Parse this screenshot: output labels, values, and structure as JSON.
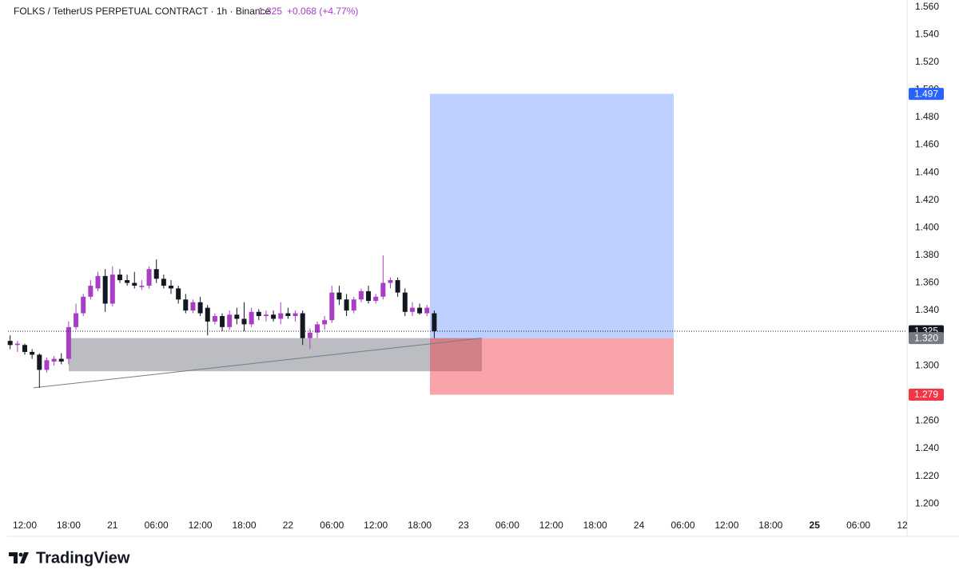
{
  "header": {
    "symbol": "FOLKS / TetherUS PERPETUAL CONTRACT · 1h · Binance",
    "last": 1.325,
    "change": "+0.068 (+4.77%)"
  },
  "chart_data": {
    "type": "candlestick",
    "open": [
      1.318,
      1.315,
      1.315,
      1.31,
      1.308,
      1.297,
      1.303,
      1.305,
      1.305,
      1.328,
      1.338,
      1.35,
      1.356,
      1.365,
      1.345,
      1.366,
      1.362,
      1.36,
      1.357,
      1.358,
      1.37,
      1.363,
      1.358,
      1.356,
      1.348,
      1.34,
      1.346,
      1.342,
      1.332,
      1.336,
      1.328,
      1.337,
      1.334,
      1.33,
      1.339,
      1.336,
      1.337,
      1.334,
      1.338,
      1.336,
      1.338,
      1.32,
      1.324,
      1.33,
      1.333,
      1.353,
      1.348,
      1.34,
      1.348,
      1.354,
      1.347,
      1.35,
      1.36,
      1.362,
      1.353,
      1.339,
      1.342,
      1.338,
      1.338
    ],
    "high": [
      1.322,
      1.318,
      1.316,
      1.312,
      1.309,
      1.306,
      1.307,
      1.309,
      1.332,
      1.345,
      1.352,
      1.362,
      1.368,
      1.37,
      1.372,
      1.37,
      1.366,
      1.368,
      1.362,
      1.372,
      1.377,
      1.366,
      1.362,
      1.358,
      1.352,
      1.348,
      1.35,
      1.344,
      1.338,
      1.338,
      1.34,
      1.342,
      1.346,
      1.342,
      1.341,
      1.34,
      1.34,
      1.346,
      1.342,
      1.34,
      1.34,
      1.327,
      1.332,
      1.336,
      1.358,
      1.358,
      1.352,
      1.35,
      1.356,
      1.358,
      1.352,
      1.38,
      1.364,
      1.364,
      1.356,
      1.346,
      1.345,
      1.344,
      1.34
    ],
    "low": [
      1.312,
      1.31,
      1.308,
      1.305,
      1.284,
      1.295,
      1.3,
      1.301,
      1.301,
      1.326,
      1.336,
      1.348,
      1.354,
      1.339,
      1.343,
      1.36,
      1.358,
      1.356,
      1.355,
      1.356,
      1.36,
      1.356,
      1.352,
      1.345,
      1.338,
      1.338,
      1.336,
      1.322,
      1.33,
      1.325,
      1.326,
      1.33,
      1.325,
      1.328,
      1.333,
      1.332,
      1.332,
      1.33,
      1.334,
      1.332,
      1.315,
      1.312,
      1.32,
      1.326,
      1.331,
      1.344,
      1.336,
      1.338,
      1.346,
      1.345,
      1.345,
      1.348,
      1.356,
      1.35,
      1.336,
      1.336,
      1.337,
      1.336,
      1.32
    ],
    "close": [
      1.315,
      1.316,
      1.31,
      1.308,
      1.297,
      1.304,
      1.305,
      1.303,
      1.328,
      1.338,
      1.35,
      1.358,
      1.365,
      1.345,
      1.366,
      1.362,
      1.36,
      1.358,
      1.358,
      1.37,
      1.363,
      1.358,
      1.356,
      1.348,
      1.34,
      1.346,
      1.338,
      1.332,
      1.336,
      1.328,
      1.337,
      1.334,
      1.33,
      1.339,
      1.336,
      1.337,
      1.334,
      1.338,
      1.336,
      1.338,
      1.32,
      1.324,
      1.33,
      1.333,
      1.353,
      1.348,
      1.34,
      1.348,
      1.354,
      1.347,
      1.35,
      1.36,
      1.362,
      1.353,
      1.339,
      1.342,
      1.338,
      1.342,
      1.325
    ],
    "up_color": "#a83ec4",
    "down_color": "#131722",
    "xticks": [
      "12:00",
      "18:00",
      "21",
      "06:00",
      "12:00",
      "18:00",
      "22",
      "06:00",
      "12:00",
      "18:00",
      "23",
      "06:00",
      "12:00",
      "18:00",
      "24",
      "06:00",
      "12:00",
      "18:00",
      "25",
      "06:00",
      "12"
    ],
    "ylim": [
      1.192,
      1.565
    ],
    "yticks": [
      {
        "value": 1.56,
        "label": "1.560"
      },
      {
        "value": 1.54,
        "label": "1.540"
      },
      {
        "value": 1.52,
        "label": "1.520"
      },
      {
        "value": 1.5,
        "label": "1.500"
      },
      {
        "value": 1.48,
        "label": "1.480"
      },
      {
        "value": 1.46,
        "label": "1.460"
      },
      {
        "value": 1.44,
        "label": "1.440"
      },
      {
        "value": 1.42,
        "label": "1.420"
      },
      {
        "value": 1.4,
        "label": "1.400"
      },
      {
        "value": 1.38,
        "label": "1.380"
      },
      {
        "value": 1.36,
        "label": "1.360"
      },
      {
        "value": 1.34,
        "label": "1.340"
      },
      {
        "value": 1.32,
        "label": "1.320"
      },
      {
        "value": 1.3,
        "label": "1.300"
      },
      {
        "value": 1.28,
        "label": "1.280"
      },
      {
        "value": 1.26,
        "label": "1.260"
      },
      {
        "value": 1.24,
        "label": "1.240"
      },
      {
        "value": 1.22,
        "label": "1.220"
      },
      {
        "value": 1.2,
        "label": "1.200"
      }
    ],
    "position": {
      "target": 1.497,
      "entry": 1.32,
      "stop": 1.279
    },
    "zone": [
      1.296,
      1.32
    ],
    "trendline": [
      1.284,
      1.32
    ],
    "price_labels": [
      {
        "value": 1.497,
        "color": "#2962ff"
      },
      {
        "value": 1.325,
        "color": "#131722"
      },
      {
        "value": 1.32,
        "label": "1.320",
        "color": "#787b86"
      },
      {
        "value": 1.279,
        "color": "#f23645"
      }
    ]
  },
  "logo": "TradingView"
}
